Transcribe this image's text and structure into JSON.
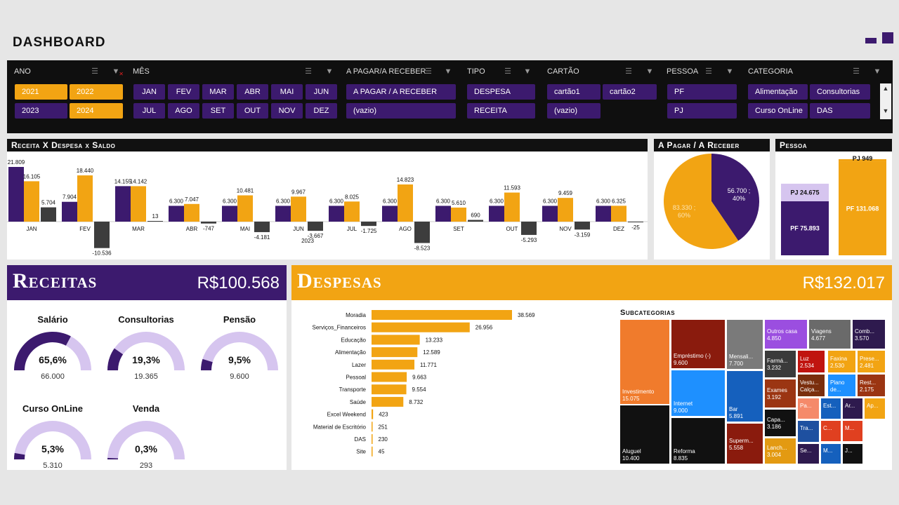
{
  "header": {
    "title": "DASHBOARD"
  },
  "colors": {
    "purple": "#3c1a6e",
    "orange": "#f2a413",
    "dark": "#3d3d3d",
    "lavender": "#d6c5ef"
  },
  "filters": {
    "ano": {
      "label": "ANO",
      "items": [
        "2021",
        "2022",
        "2023",
        "2024"
      ],
      "selected": [
        "2021",
        "2022",
        "2024"
      ]
    },
    "mes": {
      "label": "MÊS",
      "items": [
        "JAN",
        "FEV",
        "MAR",
        "ABR",
        "MAI",
        "JUN",
        "JUL",
        "AGO",
        "SET",
        "OUT",
        "NOV",
        "DEZ"
      ]
    },
    "pagar": {
      "label": "A PAGAR/A RECEBER",
      "items": [
        "A PAGAR / A RECEBER",
        "(vazio)"
      ]
    },
    "tipo": {
      "label": "TIPO",
      "items": [
        "DESPESA",
        "RECEITA"
      ]
    },
    "cartao": {
      "label": "CARTÃO",
      "items": [
        "cartão1",
        "cartão2",
        "(vazio)"
      ]
    },
    "pessoa": {
      "label": "PESSOA",
      "items": [
        "PF",
        "PJ"
      ]
    },
    "categoria": {
      "label": "CATEGORIA",
      "items": [
        "Alimentação",
        "Consultorias",
        "Curso OnLine",
        "DAS"
      ]
    }
  },
  "panels": {
    "rds_title": "Receita X Despesa x Saldo",
    "pagar_title": "A Pagar / A Receber",
    "pessoa_title": "Pessoa"
  },
  "chart_data": [
    {
      "type": "bar",
      "title": "Receita X Despesa x Saldo",
      "categories": [
        "JAN",
        "FEV",
        "MAR",
        "ABR",
        "MAI",
        "JUN",
        "JUL",
        "AGO",
        "SET",
        "OUT",
        "NOV",
        "DEZ"
      ],
      "series": [
        {
          "values": [
            21809,
            7904,
            14155,
            6300,
            6300,
            6300,
            6300,
            6300,
            6300,
            6300,
            6300,
            6300
          ]
        },
        {
          "values": [
            16105,
            18440,
            14142,
            7047,
            10481,
            9967,
            8025,
            14823,
            5610,
            11593,
            9459,
            6325
          ]
        },
        {
          "values": [
            5704,
            -10536,
            13,
            -747,
            -4181,
            -3667,
            -1725,
            -8523,
            690,
            -5293,
            -3159,
            -25
          ]
        }
      ],
      "labels": [
        [
          "21.809",
          "7.904",
          "14.155",
          "6.300",
          "6.300",
          "6.300",
          "6.300",
          "6.300",
          "6.300",
          "6.300",
          "6.300",
          "6.300"
        ],
        [
          "16.105",
          "18.440",
          "14.142",
          "7.047",
          "10.481",
          "9.967",
          "8.025",
          "14.823",
          "5.610",
          "11.593",
          "9.459",
          "6.325"
        ],
        [
          "5.704",
          "-10.536",
          "13",
          "-747",
          "-4.181",
          "-3.667",
          "-1.725",
          "-8.523",
          "690",
          "-5.293",
          "-3.159",
          "-25"
        ]
      ],
      "extra_label": "2023"
    },
    {
      "type": "pie",
      "title": "A Pagar / A Receber",
      "slices": [
        {
          "value": 56700,
          "percent": 40,
          "label": "56.700 ;",
          "pct_label": "40%"
        },
        {
          "value": 83330,
          "percent": 60,
          "label": "83.330 ;",
          "pct_label": "60%"
        }
      ]
    },
    {
      "type": "bar",
      "title": "Pessoa",
      "categories": [
        "PJ",
        "PF"
      ],
      "stacks": [
        {
          "pf": 75893,
          "pj": 24675,
          "pf_label": "PF 75.893",
          "pj_label": "PJ 24.675"
        },
        {
          "pf": 131068,
          "pj": 949,
          "pf_label": "PF 131.068",
          "pj_label": "PJ 949"
        }
      ]
    },
    {
      "type": "bar",
      "title": "Despesas",
      "categories": [
        "Moradia",
        "Serviços_Financeiros",
        "Educação",
        "Alimentação",
        "Lazer",
        "Pessoal",
        "Transporte",
        "Saúde",
        "Excel Weekend",
        "Material de Escritório",
        "DAS",
        "Site"
      ],
      "values": [
        38569,
        26956,
        13233,
        12589,
        11771,
        9663,
        9554,
        8732,
        423,
        251,
        230,
        45
      ],
      "labels": [
        "38.569",
        "26.956",
        "13.233",
        "12.589",
        "11.771",
        "9.663",
        "9.554",
        "8.732",
        "423",
        "251",
        "230",
        "45"
      ]
    }
  ],
  "receitas": {
    "title": "Receitas",
    "total": "R$100.568",
    "gauges": [
      {
        "name": "Salário",
        "pct": "65,6%",
        "frac": 0.656,
        "value": "66.000"
      },
      {
        "name": "Consultorias",
        "pct": "19,3%",
        "frac": 0.193,
        "value": "19.365"
      },
      {
        "name": "Pensão",
        "pct": "9,5%",
        "frac": 0.095,
        "value": "9.600"
      },
      {
        "name": "Curso OnLine",
        "pct": "5,3%",
        "frac": 0.053,
        "value": "5.310"
      },
      {
        "name": "Venda",
        "pct": "0,3%",
        "frac": 0.003,
        "value": "293"
      }
    ]
  },
  "despesas": {
    "title": "Despesas",
    "total": "R$132.017"
  },
  "subcategorias": {
    "title": "Subcategorias",
    "cells": [
      {
        "name": "Investimento",
        "value": "15.075",
        "color": "#f07b2c"
      },
      {
        "name": "Aluguel",
        "value": "10.400",
        "color": "#111111"
      },
      {
        "name": "Empréstimo (-)",
        "value": "9.600",
        "color": "#8a1b0d"
      },
      {
        "name": "Internet",
        "value": "9.000",
        "color": "#1e90ff"
      },
      {
        "name": "Reforma",
        "value": "8.835",
        "color": "#111111"
      },
      {
        "name": "Mensali...",
        "value": "7.700",
        "color": "#7a7a7a"
      },
      {
        "name": "Bar",
        "value": "5.891",
        "color": "#1560bd"
      },
      {
        "name": "Superm...",
        "value": "5.558",
        "color": "#8a1b0d"
      },
      {
        "name": "Outros casa",
        "value": "4.850",
        "color": "#9b4ee0"
      },
      {
        "name": "Viagens",
        "value": "4.677",
        "color": "#6a6a6a"
      },
      {
        "name": "Comb...",
        "value": "3.570",
        "color": "#2e1a4e"
      },
      {
        "name": "Farmá...",
        "value": "3.232",
        "color": "#3a3a3a"
      },
      {
        "name": "Exames",
        "value": "3.192",
        "color": "#9b3512"
      },
      {
        "name": "Capa...",
        "value": "3.186",
        "color": "#111111"
      },
      {
        "name": "Lanch...",
        "value": "3.004",
        "color": "#e39a12"
      },
      {
        "name": "Luz",
        "value": "2.534",
        "color": "#c0140f"
      },
      {
        "name": "Faxina",
        "value": "2.530",
        "color": "#f2a413"
      },
      {
        "name": "Prese...",
        "value": "2.481",
        "color": "#f2a413"
      },
      {
        "name": "Vestu... Calça...",
        "value": "",
        "color": "#7a2e0d"
      },
      {
        "name": "Plano de...",
        "value": "",
        "color": "#1e90ff"
      },
      {
        "name": "Rest...",
        "value": "2.175",
        "color": "#9b3512"
      },
      {
        "name": "Pa...",
        "value": "",
        "color": "#f58a6a"
      },
      {
        "name": "Est...",
        "value": "",
        "color": "#1560bd"
      },
      {
        "name": "Ar...",
        "value": "",
        "color": "#2e1a4e"
      },
      {
        "name": "Ap...",
        "value": "",
        "color": "#f2a413"
      },
      {
        "name": "Tra...",
        "value": "",
        "color": "#1e50a0"
      },
      {
        "name": "C...",
        "value": "",
        "color": "#e04020"
      },
      {
        "name": "M...",
        "value": "",
        "color": "#e04020"
      },
      {
        "name": "Se...",
        "value": "",
        "color": "#2e1a4e"
      },
      {
        "name": "M...",
        "value": "",
        "color": "#1560bd"
      },
      {
        "name": "J...",
        "value": "",
        "color": "#111111"
      }
    ]
  }
}
